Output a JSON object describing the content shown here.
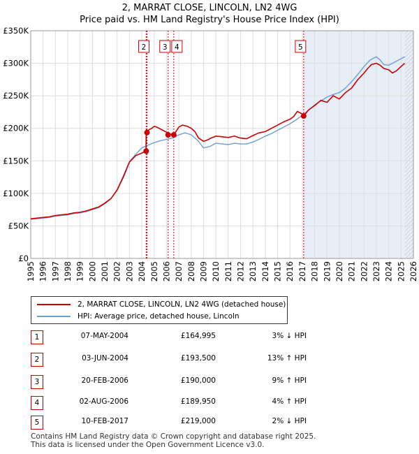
{
  "header": {
    "title": "2, MARRAT CLOSE, LINCOLN, LN2 4WG",
    "subtitle": "Price paid vs. HM Land Registry's House Price Index (HPI)"
  },
  "colors": {
    "property": "#cc0000",
    "hpi": "#6a9fd8",
    "shade": "#e8eef8",
    "grid": "#dddddd",
    "vline": "#cc0000"
  },
  "chart_data": {
    "type": "line",
    "xlim": [
      1995,
      2026
    ],
    "ylim": [
      0,
      350000
    ],
    "yticks": [
      {
        "value": 0,
        "label": "£0"
      },
      {
        "value": 50000,
        "label": "£50K"
      },
      {
        "value": 100000,
        "label": "£100K"
      },
      {
        "value": 150000,
        "label": "£150K"
      },
      {
        "value": 200000,
        "label": "£200K"
      },
      {
        "value": 250000,
        "label": "£250K"
      },
      {
        "value": 300000,
        "label": "£300K"
      },
      {
        "value": 350000,
        "label": "£350K"
      }
    ],
    "xticks": [
      "1995",
      "1996",
      "1997",
      "1998",
      "1999",
      "2000",
      "2001",
      "2002",
      "2003",
      "2004",
      "2005",
      "2006",
      "2007",
      "2008",
      "2009",
      "2010",
      "2011",
      "2012",
      "2013",
      "2014",
      "2015",
      "2016",
      "2017",
      "2018",
      "2019",
      "2020",
      "2021",
      "2022",
      "2023",
      "2024",
      "2025",
      "2026"
    ],
    "shaded_from": 2017.11,
    "hatched_from": 2025.3,
    "series": [
      {
        "name": "2, MARRAT CLOSE, LINCOLN, LN2 4WG (detached house)",
        "x": [
          1995.0,
          1995.5,
          1996.0,
          1996.5,
          1997.0,
          1997.5,
          1998.0,
          1998.5,
          1999.0,
          1999.5,
          2000.0,
          2000.5,
          2001.0,
          2001.5,
          2002.0,
          2002.5,
          2003.0,
          2003.5,
          2004.0,
          2004.34,
          2004.35,
          2004.42,
          2004.43,
          2004.6,
          2004.8,
          2005.0,
          2005.2,
          2005.4,
          2005.7,
          2006.0,
          2006.13,
          2006.3,
          2006.59,
          2006.8,
          2007.0,
          2007.3,
          2007.7,
          2008.0,
          2008.3,
          2008.6,
          2009.0,
          2009.3,
          2009.6,
          2010.0,
          2010.5,
          2011.0,
          2011.5,
          2012.0,
          2012.5,
          2013.0,
          2013.5,
          2014.0,
          2014.5,
          2015.0,
          2015.5,
          2016.0,
          2016.3,
          2016.6,
          2017.0,
          2017.11,
          2017.5,
          2018.0,
          2018.5,
          2019.0,
          2019.5,
          2020.0,
          2020.5,
          2021.0,
          2021.5,
          2022.0,
          2022.3,
          2022.6,
          2023.0,
          2023.3,
          2023.6,
          2024.0,
          2024.3,
          2024.6,
          2025.0,
          2025.3
        ],
        "values": [
          61000,
          62000,
          63000,
          64000,
          66000,
          67000,
          68000,
          70000,
          71000,
          73000,
          76000,
          79000,
          85000,
          92000,
          105000,
          125000,
          148000,
          158000,
          162000,
          164995,
          193500,
          193500,
          196000,
          198000,
          200000,
          203000,
          202000,
          200000,
          197000,
          194000,
          190000,
          191000,
          189950,
          196000,
          202000,
          205000,
          203000,
          200000,
          195000,
          185000,
          180000,
          182000,
          185000,
          188000,
          187000,
          186000,
          188000,
          185000,
          184000,
          189000,
          193000,
          195000,
          200000,
          205000,
          210000,
          214000,
          218000,
          226000,
          222000,
          219000,
          228000,
          235000,
          243000,
          240000,
          250000,
          245000,
          255000,
          262000,
          275000,
          285000,
          292000,
          298000,
          300000,
          297000,
          292000,
          290000,
          285000,
          288000,
          295000,
          300000
        ]
      },
      {
        "name": "HPI: Average price, detached house, Lincoln",
        "x": [
          1995.0,
          1995.5,
          1996.0,
          1996.5,
          1997.0,
          1997.5,
          1998.0,
          1998.5,
          1999.0,
          1999.5,
          2000.0,
          2000.5,
          2001.0,
          2001.5,
          2002.0,
          2002.5,
          2003.0,
          2003.5,
          2004.0,
          2004.5,
          2005.0,
          2005.5,
          2006.0,
          2006.5,
          2007.0,
          2007.5,
          2008.0,
          2008.5,
          2009.0,
          2009.5,
          2010.0,
          2010.5,
          2011.0,
          2011.5,
          2012.0,
          2012.5,
          2013.0,
          2013.5,
          2014.0,
          2014.5,
          2015.0,
          2015.5,
          2016.0,
          2016.5,
          2017.0,
          2017.5,
          2018.0,
          2018.5,
          2019.0,
          2019.5,
          2020.0,
          2020.5,
          2021.0,
          2021.5,
          2022.0,
          2022.5,
          2023.0,
          2023.3,
          2023.6,
          2024.0,
          2024.3,
          2024.6,
          2025.0,
          2025.3
        ],
        "values": [
          60000,
          61000,
          62000,
          63000,
          65000,
          66000,
          67000,
          69000,
          70000,
          72000,
          75000,
          78000,
          84000,
          92000,
          106000,
          127000,
          149000,
          160000,
          170000,
          174000,
          178000,
          181000,
          183000,
          185000,
          190000,
          193000,
          190000,
          182000,
          170000,
          172000,
          177000,
          176000,
          175000,
          177000,
          176000,
          176000,
          179000,
          183000,
          188000,
          192000,
          197000,
          202000,
          207000,
          213000,
          220000,
          228000,
          236000,
          242000,
          248000,
          252000,
          255000,
          262000,
          272000,
          283000,
          295000,
          305000,
          310000,
          305000,
          298000,
          297000,
          300000,
          303000,
          307000,
          310000
        ]
      }
    ],
    "transactions": [
      {
        "id": "1",
        "x": 2004.35,
        "value": 164995,
        "date": "07-MAY-2004",
        "price": "£164,995",
        "hpi": "3% ↓ HPI",
        "show_label": false
      },
      {
        "id": "2",
        "x": 2004.42,
        "value": 193500,
        "date": "03-JUN-2004",
        "price": "£193,500",
        "hpi": "13% ↑ HPI",
        "show_label": true
      },
      {
        "id": "3",
        "x": 2006.13,
        "value": 190000,
        "date": "20-FEB-2006",
        "price": "£190,000",
        "hpi": "9% ↑ HPI",
        "show_label": true
      },
      {
        "id": "4",
        "x": 2006.59,
        "value": 189950,
        "date": "02-AUG-2006",
        "price": "£189,950",
        "hpi": "4% ↑ HPI",
        "show_label": true
      },
      {
        "id": "5",
        "x": 2017.11,
        "value": 219000,
        "date": "10-FEB-2017",
        "price": "£219,000",
        "hpi": "2% ↓ HPI",
        "show_label": true
      }
    ]
  },
  "footer": {
    "line1": "Contains HM Land Registry data © Crown copyright and database right 2025.",
    "line2": "This data is licensed under the Open Government Licence v3.0."
  }
}
